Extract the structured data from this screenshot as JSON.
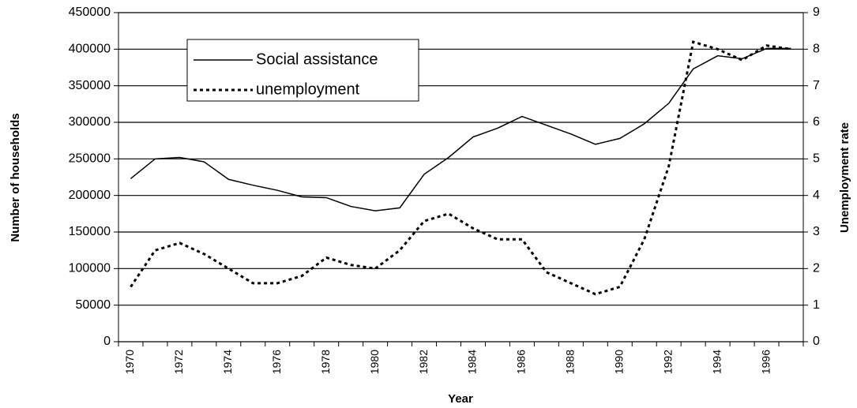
{
  "chart_data": {
    "type": "line",
    "x_label": "Year",
    "y_label": "Number of households",
    "y2_label": "Unemployment rate",
    "categories": [
      "1970",
      null,
      "1972",
      null,
      "1974",
      null,
      "1976",
      null,
      "1978",
      null,
      "1980",
      null,
      "1982",
      null,
      "1984",
      null,
      "1986",
      null,
      "1988",
      null,
      "1990",
      null,
      "1992",
      null,
      "1994",
      null,
      "1996",
      null
    ],
    "series": [
      {
        "name": "Social assistance",
        "color": "#000000",
        "values": [
          223000,
          250000,
          252000,
          246000,
          222000,
          214000,
          207000,
          198000,
          197000,
          185000,
          179000,
          183000,
          229000,
          252000,
          280000,
          292000,
          308000,
          296000,
          284000,
          270000,
          278000,
          298000,
          326000,
          373000,
          391000,
          387000,
          401000,
          401000
        ]
      },
      {
        "name": "unemployment",
        "color": "#000000",
        "dashed": true,
        "axis": "y2",
        "values": [
          1.5,
          2.5,
          2.7,
          2.4,
          2.0,
          1.6,
          1.6,
          1.8,
          2.3,
          2.1,
          2.0,
          2.5,
          3.3,
          3.5,
          3.1,
          2.8,
          2.8,
          1.9,
          1.6,
          1.3,
          1.5,
          2.8,
          4.8,
          8.2,
          8.0,
          7.7,
          8.1,
          8.0
        ]
      }
    ],
    "ylim": [
      0,
      450000
    ],
    "yticks": [
      0,
      50000,
      100000,
      150000,
      200000,
      250000,
      300000,
      350000,
      400000,
      450000
    ],
    "y2lim": [
      0,
      9
    ],
    "y2ticks": [
      0,
      1,
      2,
      3,
      4,
      5,
      6,
      7,
      8,
      9
    ],
    "grid": true
  }
}
